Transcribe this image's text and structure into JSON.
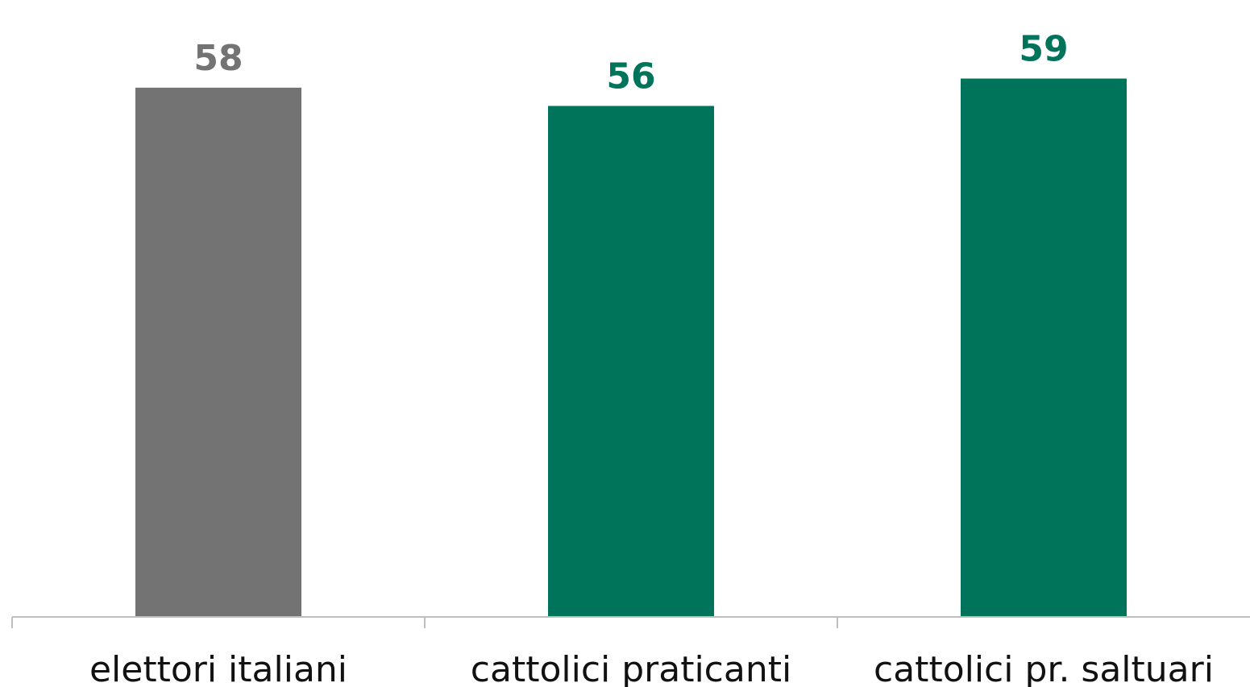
{
  "chart_data": {
    "type": "bar",
    "title": "",
    "xlabel": "",
    "ylabel": "",
    "categories": [
      "elettori italiani",
      "cattolici praticanti",
      "cattolici pr. saltuari"
    ],
    "values": [
      58,
      56,
      59
    ],
    "colors": [
      "#737373",
      "#00745a",
      "#00745a"
    ],
    "ylim": [
      0,
      60
    ],
    "grid": false,
    "legend": "none",
    "data_labels": true
  }
}
